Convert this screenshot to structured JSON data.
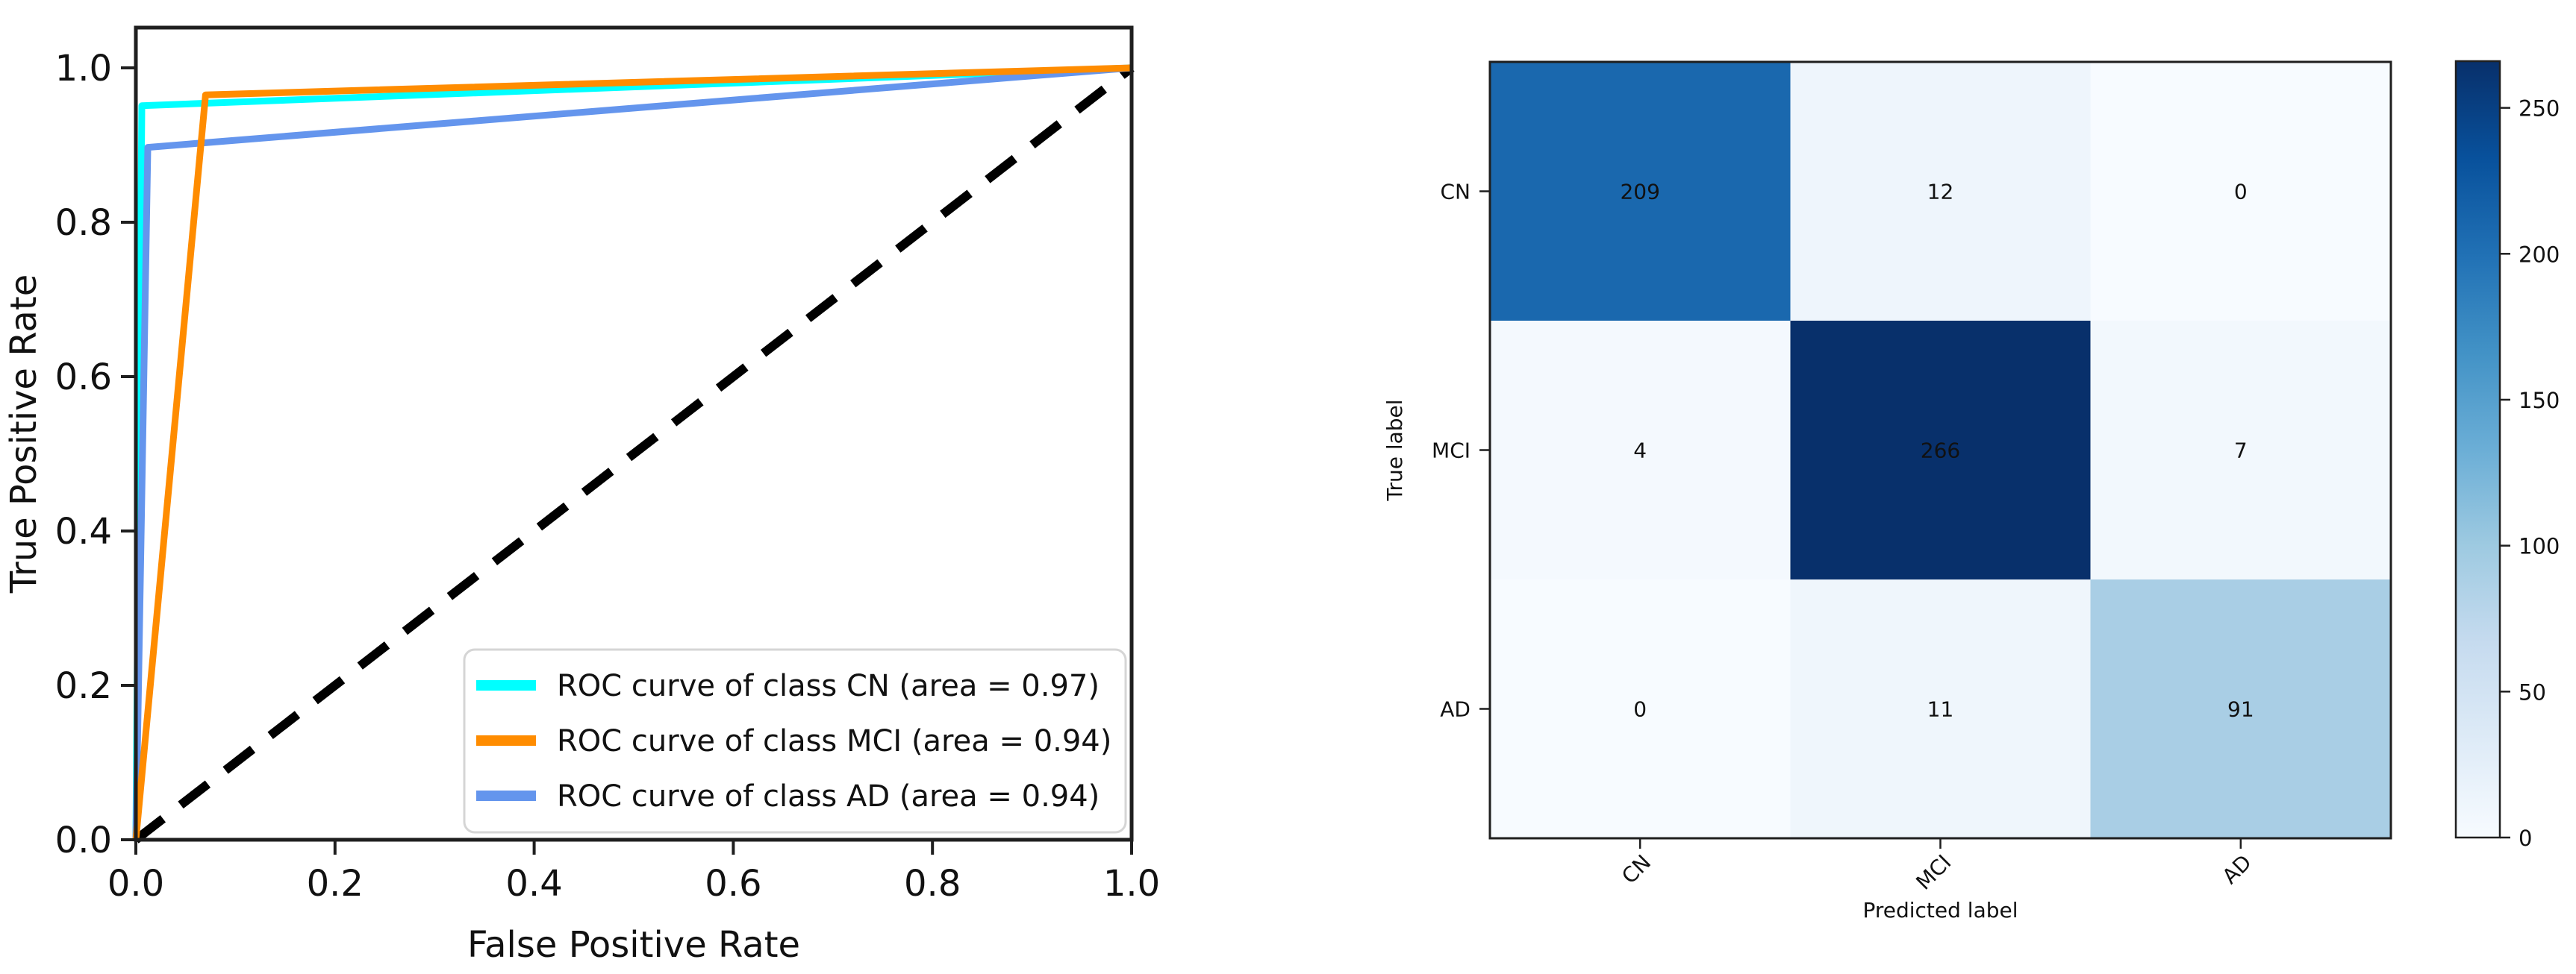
{
  "chart_data": [
    {
      "type": "line",
      "title": "",
      "xlabel": "False Positive Rate",
      "ylabel": "True Positive Rate",
      "xlim": [
        0.0,
        1.0
      ],
      "ylim": [
        0.0,
        1.05
      ],
      "grid": false,
      "xticks": [
        "0.0",
        "0.2",
        "0.4",
        "0.6",
        "0.8",
        "1.0"
      ],
      "yticks": [
        "0.0",
        "0.2",
        "0.4",
        "0.6",
        "0.8",
        "1.0"
      ],
      "legend_position": "lower right",
      "series": [
        {
          "name": "ROC curve of class CN (area = 0.97)",
          "class": "CN",
          "auc": "0.97",
          "color": "#00FFFF",
          "points": [
            [
              0,
              0
            ],
            [
              0.006,
              0.951
            ],
            [
              1,
              1
            ]
          ]
        },
        {
          "name": "ROC curve of class MCI (area = 0.94)",
          "class": "MCI",
          "auc": "0.94",
          "color": "#FF8C00",
          "points": [
            [
              0,
              0
            ],
            [
              0.07,
              0.965
            ],
            [
              1,
              1
            ]
          ]
        },
        {
          "name": "ROC curve of class AD (area = 0.94)",
          "class": "AD",
          "auc": "0.94",
          "color": "#6495ED",
          "points": [
            [
              0,
              0
            ],
            [
              0.012,
              0.897
            ],
            [
              1,
              1
            ]
          ]
        }
      ],
      "diagonal_reference": {
        "style": "dashed",
        "color": "#000000",
        "points": [
          [
            0,
            0
          ],
          [
            1,
            1
          ]
        ]
      }
    },
    {
      "type": "heatmap",
      "title": "",
      "xlabel": "Predicted label",
      "ylabel": "True label",
      "x_categories": [
        "CN",
        "MCI",
        "AD"
      ],
      "y_categories": [
        "CN",
        "MCI",
        "AD"
      ],
      "rows": [
        [
          209,
          12,
          0
        ],
        [
          4,
          266,
          7
        ],
        [
          0,
          11,
          91
        ]
      ],
      "colormap": "Blues",
      "vmin": 0,
      "vmax": 266,
      "colorbar_ticks": [
        "0",
        "50",
        "100",
        "150",
        "200",
        "250"
      ]
    }
  ],
  "colors": {
    "background": "#ffffff",
    "axis_frame": "#1f1f1f",
    "tick_text": "#111111",
    "legend_border": "#d5d5d5",
    "legend_background": "#ffffff",
    "cell_text_dark": "#15181d",
    "cell_text_light": "#f7fbff",
    "blues_scale": [
      "#f7fbff",
      "#deebf7",
      "#c6dbef",
      "#9ecae1",
      "#6baed6",
      "#4292c6",
      "#2171b5",
      "#08519c",
      "#08306b"
    ]
  }
}
